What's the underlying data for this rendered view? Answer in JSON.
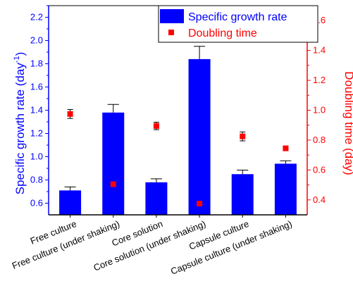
{
  "chart_data": {
    "type": "bar",
    "categories": [
      "Free culture",
      "Free culture (under shaking)",
      "Core solution",
      "Core solution (under shaking)",
      "Capsule culture",
      "Capsule culture (under shaking)"
    ],
    "series": [
      {
        "name": "Specific growth rate",
        "type": "bar",
        "axis": "left",
        "color": "#0000ff",
        "values": [
          0.71,
          1.38,
          0.78,
          1.84,
          0.85,
          0.94
        ],
        "errors": [
          0.03,
          0.07,
          0.03,
          0.11,
          0.035,
          0.025
        ]
      },
      {
        "name": "Doubling time",
        "type": "scatter",
        "axis": "right",
        "color": "#ff0000",
        "values": [
          0.975,
          0.505,
          0.895,
          0.375,
          0.825,
          0.745
        ],
        "errors": [
          0.03,
          0.015,
          0.025,
          0.015,
          0.03,
          0.015
        ]
      }
    ],
    "ylabel_left": "Specific growth rate (day",
    "ylabel_left_sup": "-1",
    "ylabel_left_suffix": ")",
    "ylabel_right": "Doubling time (day)",
    "ylim_left": [
      0.5,
      2.3
    ],
    "yticks_left": [
      "0.6",
      "0.8",
      "1.0",
      "1.2",
      "1.4",
      "1.6",
      "1.8",
      "2.0",
      "2.2"
    ],
    "ylim_right": [
      0.3,
      1.7
    ],
    "yticks_right": [
      "0.4",
      "0.6",
      "0.8",
      "1.0",
      "1.2",
      "1.4",
      "1.6"
    ],
    "legend_position": "top-right",
    "grid": false
  }
}
